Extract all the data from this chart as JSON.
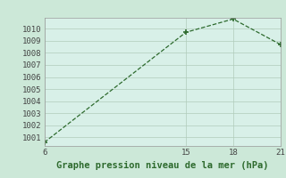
{
  "x": [
    6,
    15,
    18,
    21
  ],
  "y": [
    1000.6,
    1009.7,
    1010.8,
    1008.7
  ],
  "xlim": [
    6,
    21
  ],
  "ylim": [
    1000.3,
    1010.9
  ],
  "yticks": [
    1001,
    1002,
    1003,
    1004,
    1005,
    1006,
    1007,
    1008,
    1009,
    1010
  ],
  "xticks": [
    6,
    15,
    18,
    21
  ],
  "xlabel": "Graphe pression niveau de la mer (hPa)",
  "line_color": "#2d6a2d",
  "marker": "+",
  "bg_color": "#cce8d8",
  "plot_bg_color": "#d8f0e8",
  "grid_color": "#b0ccbb",
  "tick_fontsize": 6.5,
  "xlabel_fontsize": 7.5
}
